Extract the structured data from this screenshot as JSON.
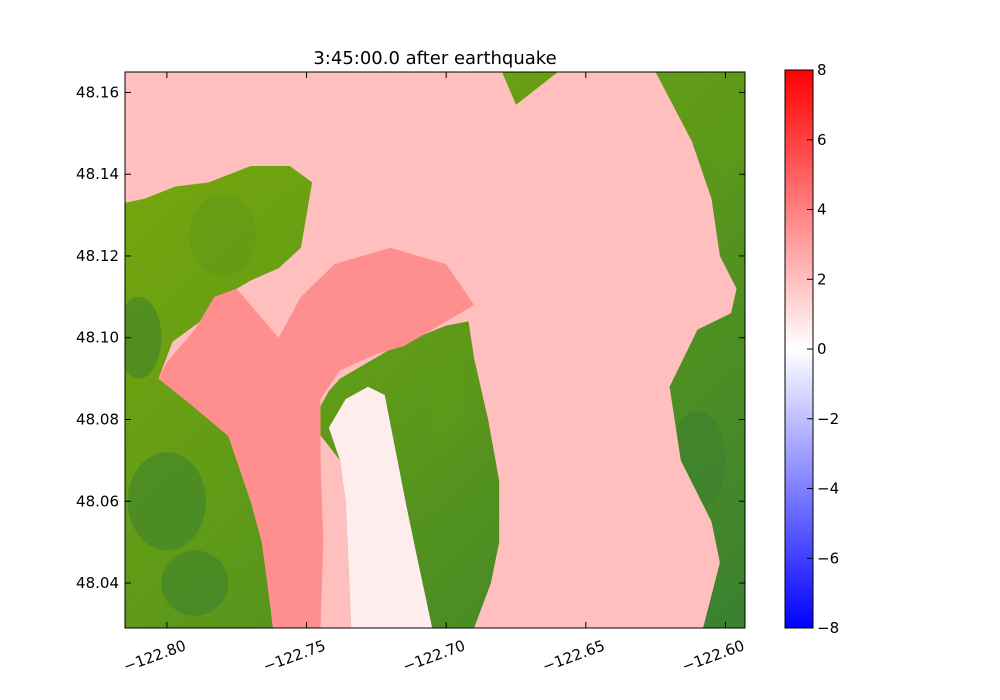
{
  "chart_data": {
    "type": "heatmap",
    "title": "3:45:00.0 after earthquake",
    "xlabel": "",
    "ylabel": "",
    "xlim": [
      -122.815,
      -122.593
    ],
    "ylim": [
      48.029,
      48.165
    ],
    "x_ticks": [
      -122.8,
      -122.75,
      -122.7,
      -122.65,
      -122.6
    ],
    "x_tick_labels": [
      "−122.80",
      "−122.75",
      "−122.70",
      "−122.65",
      "−122.60"
    ],
    "y_ticks": [
      48.04,
      48.06,
      48.08,
      48.1,
      48.12,
      48.14,
      48.16
    ],
    "y_tick_labels": [
      "48.04",
      "48.06",
      "48.08",
      "48.10",
      "48.12",
      "48.14",
      "48.16"
    ],
    "x_tick_rotation_deg": 20,
    "grid": false,
    "colorbar": {
      "range": [
        -8,
        8
      ],
      "ticks": [
        -8,
        -6,
        -4,
        -2,
        0,
        2,
        4,
        6,
        8
      ],
      "tick_labels": [
        "−8",
        "−6",
        "−4",
        "−2",
        "0",
        "2",
        "4",
        "6",
        "8"
      ],
      "colors": [
        "#0000ff",
        "#ffffff",
        "#ff0000"
      ]
    },
    "land_colors": [
      "#7aa80a",
      "#5e9a18",
      "#3a8030"
    ],
    "water_regions": [
      {
        "name": "north-bay",
        "polygon": [
          [
            -122.815,
            48.165
          ],
          [
            -122.68,
            48.165
          ],
          [
            -122.675,
            48.157
          ],
          [
            -122.66,
            48.165
          ],
          [
            -122.625,
            48.165
          ],
          [
            -122.612,
            48.148
          ],
          [
            -122.605,
            48.134
          ],
          [
            -122.602,
            48.12
          ],
          [
            -122.596,
            48.112
          ],
          [
            -122.598,
            48.106
          ],
          [
            -122.61,
            48.102
          ],
          [
            -122.62,
            48.088
          ],
          [
            -122.616,
            48.07
          ],
          [
            -122.605,
            48.055
          ],
          [
            -122.602,
            48.045
          ],
          [
            -122.608,
            48.029
          ],
          [
            -122.69,
            48.029
          ],
          [
            -122.684,
            48.04
          ],
          [
            -122.681,
            48.05
          ],
          [
            -122.681,
            48.065
          ],
          [
            -122.685,
            48.08
          ],
          [
            -122.69,
            48.095
          ],
          [
            -122.692,
            48.104
          ],
          [
            -122.7,
            48.103
          ],
          [
            -122.718,
            48.098
          ],
          [
            -122.728,
            48.094
          ],
          [
            -122.738,
            48.09
          ],
          [
            -122.742,
            48.087
          ],
          [
            -122.746,
            48.082
          ],
          [
            -122.746,
            48.077
          ],
          [
            -122.738,
            48.07
          ],
          [
            -122.736,
            48.06
          ],
          [
            -122.735,
            48.045
          ],
          [
            -122.734,
            48.029
          ],
          [
            -122.762,
            48.029
          ],
          [
            -122.764,
            48.04
          ],
          [
            -122.766,
            48.05
          ],
          [
            -122.77,
            48.06
          ],
          [
            -122.778,
            48.076
          ],
          [
            -122.792,
            48.084
          ],
          [
            -122.803,
            48.09
          ],
          [
            -122.798,
            48.099
          ],
          [
            -122.788,
            48.104
          ],
          [
            -122.783,
            48.11
          ],
          [
            -122.775,
            48.112
          ],
          [
            -122.77,
            48.114
          ],
          [
            -122.76,
            48.117
          ],
          [
            -122.752,
            48.122
          ],
          [
            -122.75,
            48.13
          ],
          [
            -122.748,
            48.138
          ],
          [
            -122.756,
            48.142
          ],
          [
            -122.77,
            48.142
          ],
          [
            -122.785,
            48.138
          ],
          [
            -122.797,
            48.137
          ],
          [
            -122.808,
            48.134
          ],
          [
            -122.815,
            48.133
          ]
        ],
        "value": 2.0
      },
      {
        "name": "central-inlet",
        "polygon": [
          [
            -122.745,
            48.085
          ],
          [
            -122.738,
            48.092
          ],
          [
            -122.725,
            48.096
          ],
          [
            -122.715,
            48.098
          ],
          [
            -122.705,
            48.102
          ],
          [
            -122.69,
            48.108
          ],
          [
            -122.7,
            48.118
          ],
          [
            -122.72,
            48.122
          ],
          [
            -122.74,
            48.118
          ],
          [
            -122.752,
            48.11
          ],
          [
            -122.76,
            48.1
          ],
          [
            -122.775,
            48.112
          ],
          [
            -122.783,
            48.11
          ],
          [
            -122.79,
            48.102
          ],
          [
            -122.8,
            48.094
          ],
          [
            -122.803,
            48.09
          ],
          [
            -122.792,
            48.084
          ],
          [
            -122.778,
            48.076
          ],
          [
            -122.77,
            48.06
          ],
          [
            -122.766,
            48.05
          ],
          [
            -122.764,
            48.04
          ],
          [
            -122.762,
            48.029
          ],
          [
            -122.745,
            48.029
          ],
          [
            -122.744,
            48.05
          ],
          [
            -122.745,
            48.07
          ]
        ],
        "value": 3.5
      },
      {
        "name": "narrow-channel",
        "polygon": [
          [
            -122.734,
            48.029
          ],
          [
            -122.735,
            48.045
          ],
          [
            -122.736,
            48.06
          ],
          [
            -122.738,
            48.07
          ],
          [
            -122.742,
            48.078
          ],
          [
            -122.736,
            48.085
          ],
          [
            -122.728,
            48.088
          ],
          [
            -122.722,
            48.086
          ],
          [
            -122.718,
            48.072
          ],
          [
            -122.714,
            48.058
          ],
          [
            -122.71,
            48.045
          ],
          [
            -122.705,
            48.029
          ]
        ],
        "value": 0.6
      }
    ]
  }
}
